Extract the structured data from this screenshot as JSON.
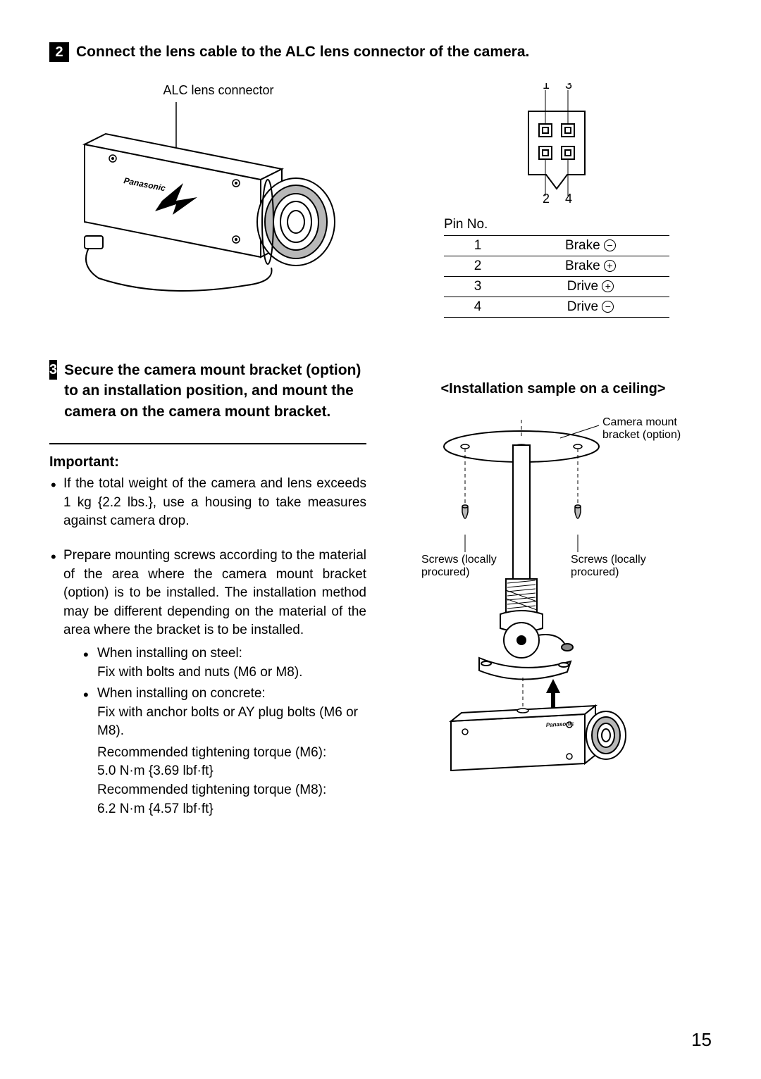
{
  "step2": {
    "number": "2",
    "title": "Connect the lens cable to the ALC lens connector of the camera.",
    "camera_label": "ALC lens connector",
    "connector_pins": {
      "top_left": "1",
      "top_right": "3",
      "bottom_left": "2",
      "bottom_right": "4"
    },
    "pin_table": {
      "caption": "Pin No.",
      "rows": [
        {
          "pin": "1",
          "signal": "Brake",
          "sym": "−"
        },
        {
          "pin": "2",
          "signal": "Brake",
          "sym": "+"
        },
        {
          "pin": "3",
          "signal": "Drive",
          "sym": "+"
        },
        {
          "pin": "4",
          "signal": "Drive",
          "sym": "−"
        }
      ]
    }
  },
  "step3": {
    "number": "3",
    "title": "Secure the camera mount bracket (option) to an installation position, and mount the camera on the camera mount bracket.",
    "important_label": "Important:",
    "bullets": [
      "If the total weight of the camera and lens exceeds 1 kg {2.2 lbs.}, use a housing to take measures against camera drop.",
      "Prepare mounting screws according to the material of the area where the camera mount bracket (option) is to be installed. The installation method may be different depending on the material of the area where the bracket is to be installed."
    ],
    "sub_bullets": [
      {
        "head": "When installing on steel:",
        "body": "Fix with bolts and nuts (M6 or M8)."
      },
      {
        "head": "When installing on concrete:",
        "body": "Fix with anchor bolts or AY plug bolts (M6 or M8)."
      }
    ],
    "torque": [
      "Recommended tightening torque (M6):",
      "5.0 N·m {3.69 lbf·ft}",
      "Recommended tightening torque (M8):",
      "6.2 N·m {4.57 lbf·ft}"
    ],
    "install_title": "<Installation sample on a ceiling>",
    "labels": {
      "bracket": "Camera mount",
      "bracket2": "bracket (option)",
      "screws1a": "Screws (locally",
      "screws1b": "procured)",
      "screws2a": "Screws (locally",
      "screws2b": "procured)"
    }
  },
  "page_number": "15",
  "colors": {
    "text": "#000000",
    "bg": "#ffffff",
    "shade": "#b8b8b8",
    "shade_dark": "#888888"
  }
}
